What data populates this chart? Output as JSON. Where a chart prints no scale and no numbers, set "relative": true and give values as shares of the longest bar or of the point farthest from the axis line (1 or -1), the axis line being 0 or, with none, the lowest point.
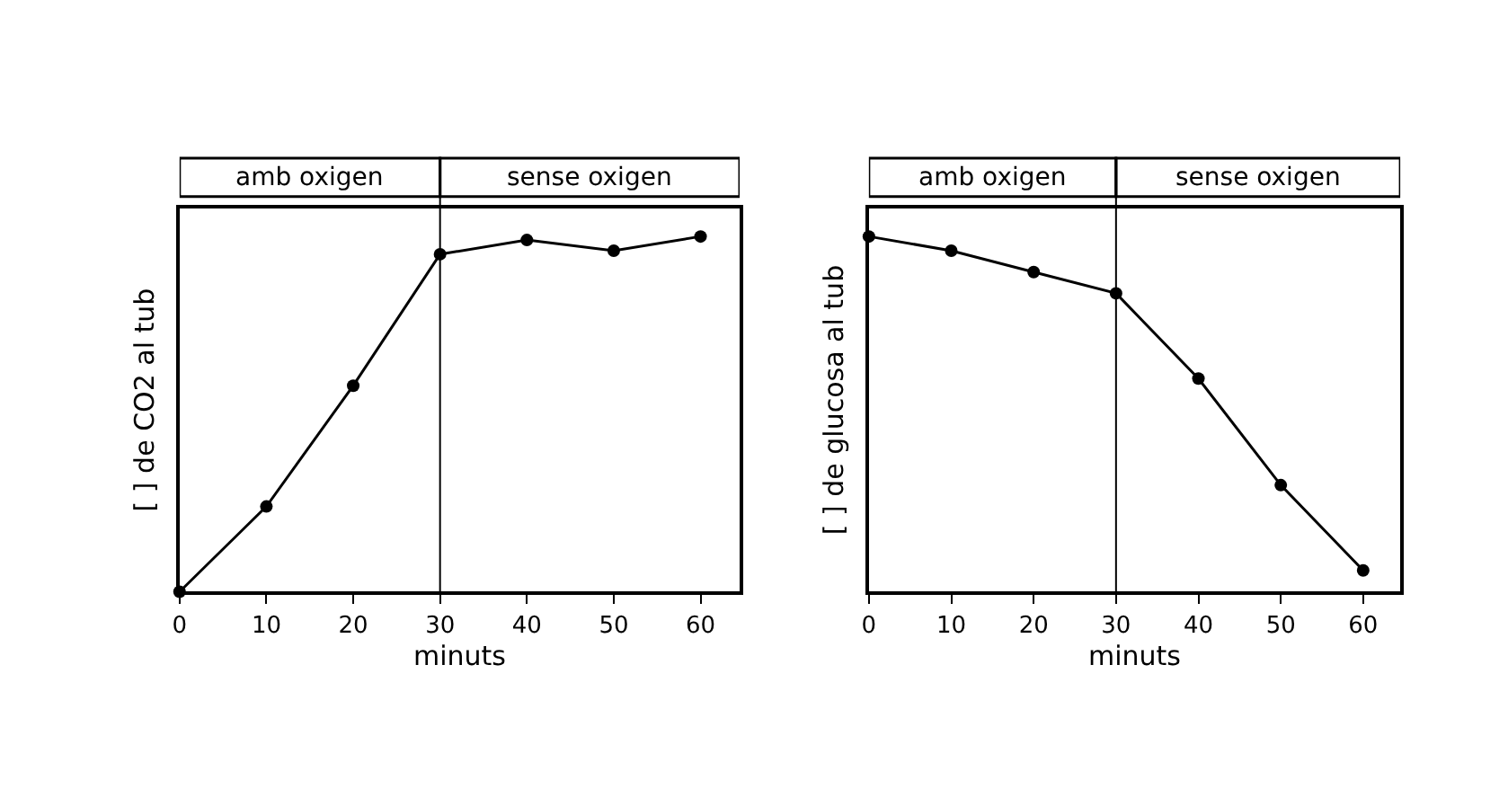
{
  "chart_data": [
    {
      "type": "line",
      "relative": true,
      "xlabel": "minuts",
      "ylabel": "[ ] de CO2 al tub",
      "x": [
        0,
        10,
        20,
        30,
        40,
        50,
        60
      ],
      "xlim": [
        0,
        64.5
      ],
      "xticks": [
        0,
        10,
        20,
        30,
        40,
        50,
        60
      ],
      "series": [
        {
          "color": "#000000",
          "values": [
            0,
            0.24,
            0.58,
            0.95,
            0.99,
            0.96,
            1
          ]
        }
      ],
      "ref_lines": [
        {
          "axis": "x",
          "value": 30,
          "color": "#000000"
        }
      ],
      "annotations": [
        "amb oxigen",
        "sense oxigen"
      ],
      "marker": "circle",
      "grid": false
    },
    {
      "type": "line",
      "relative": true,
      "xlabel": "minuts",
      "ylabel": "[ ] de glucosa al tub",
      "x": [
        0,
        10,
        20,
        30,
        40,
        50,
        60
      ],
      "xlim": [
        0,
        64.5
      ],
      "xticks": [
        0,
        10,
        20,
        30,
        40,
        50,
        60
      ],
      "series": [
        {
          "color": "#000000",
          "values": [
            1,
            0.96,
            0.9,
            0.84,
            0.6,
            0.3,
            0.06
          ]
        }
      ],
      "ref_lines": [
        {
          "axis": "x",
          "value": 30,
          "color": "#000000"
        }
      ],
      "annotations": [
        "amb oxigen",
        "sense oxigen"
      ],
      "marker": "circle",
      "grid": false
    }
  ]
}
